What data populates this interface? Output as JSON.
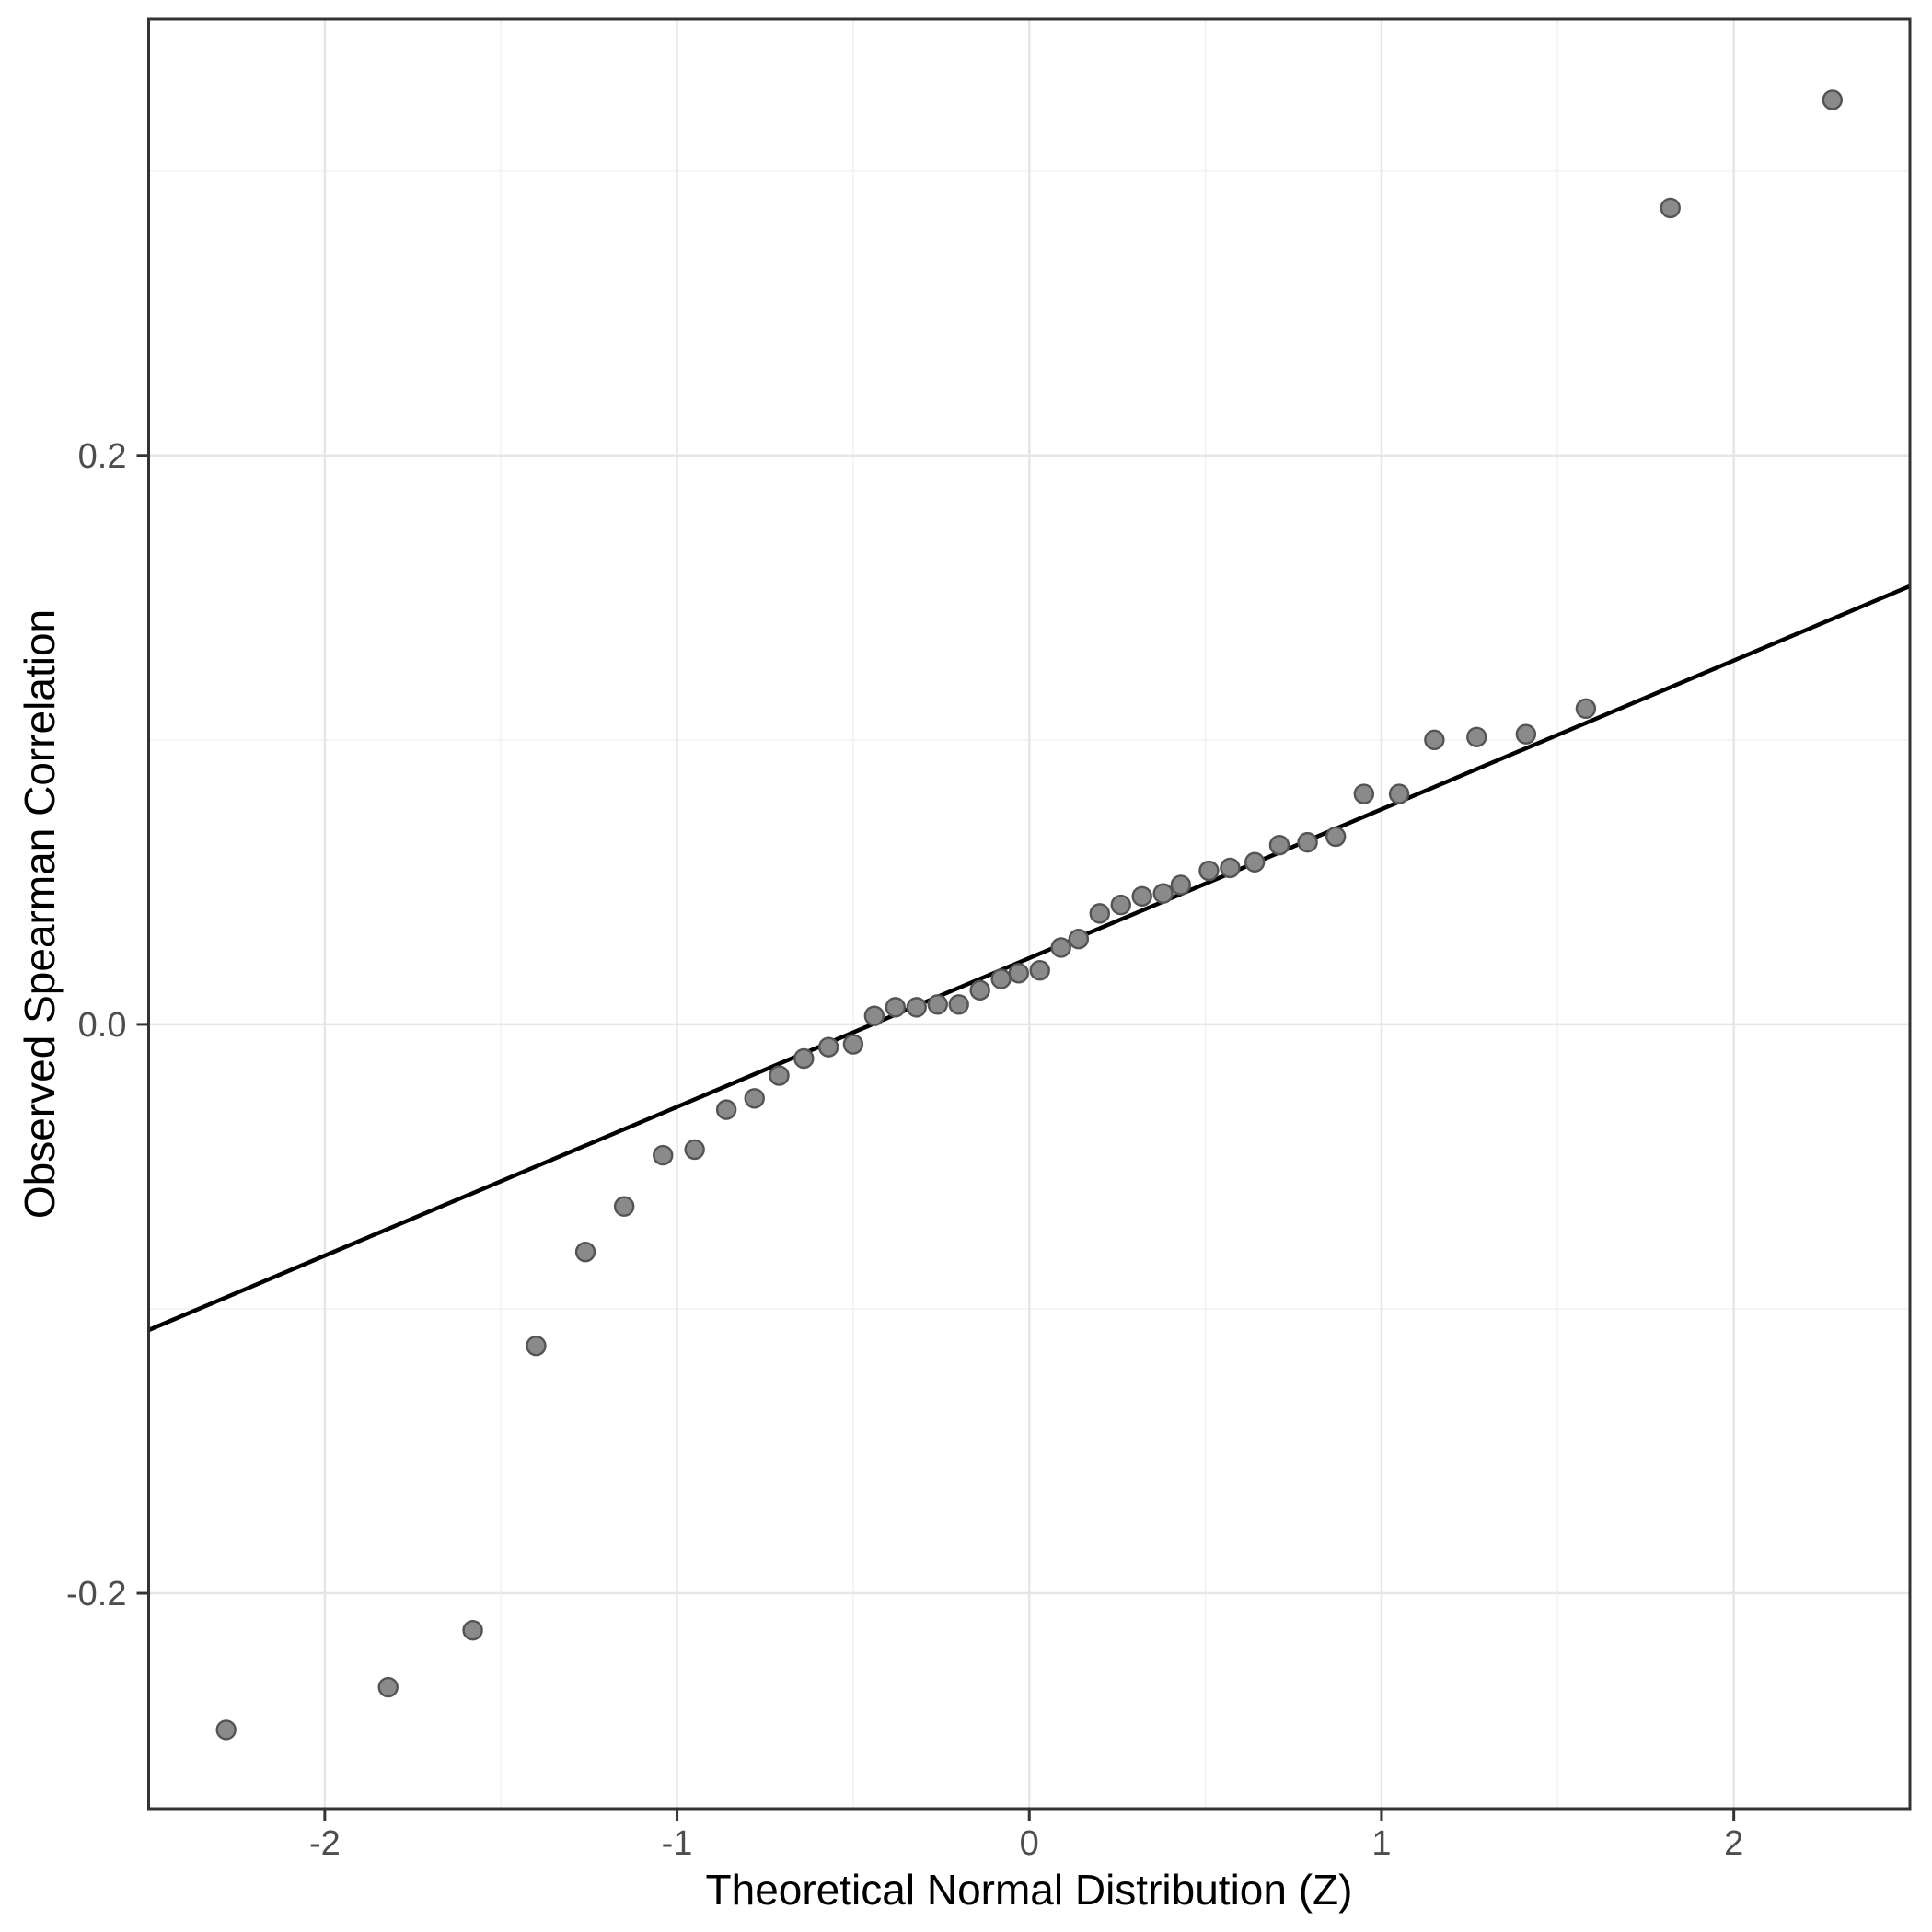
{
  "figure": {
    "background": "#ffffff"
  },
  "chart_data": {
    "type": "scatter",
    "title": "",
    "xlabel": "Theoretical Normal Distribution (Z)",
    "ylabel": "Observed Spearman Correlation",
    "xlim": [
      -2.5,
      2.5
    ],
    "ylim": [
      -0.2757,
      0.3533
    ],
    "grid": true,
    "legend": "none",
    "x_ticks": [
      {
        "value": -2,
        "label": "-2"
      },
      {
        "value": -1,
        "label": "-1"
      },
      {
        "value": 0,
        "label": "0"
      },
      {
        "value": 1,
        "label": "1"
      },
      {
        "value": 2,
        "label": "2"
      }
    ],
    "x_minor": [
      -1.5,
      -0.5,
      0.5,
      1.5
    ],
    "y_ticks": [
      {
        "value": 0.2,
        "label": "0.2"
      },
      {
        "value": 0.0,
        "label": "0.0"
      },
      {
        "value": -0.2,
        "label": "-0.2"
      }
    ],
    "y_minor": [
      0.3,
      0.1,
      -0.1
    ],
    "series": [
      {
        "name": "observed-vs-theoretical-quantiles",
        "points": [
          [
            -2.28,
            -0.248
          ],
          [
            -1.82,
            -0.233
          ],
          [
            -1.58,
            -0.213
          ],
          [
            -1.4,
            -0.113
          ],
          [
            -1.26,
            -0.08
          ],
          [
            -1.15,
            -0.064
          ],
          [
            -1.04,
            -0.046
          ],
          [
            -0.95,
            -0.044
          ],
          [
            -0.86,
            -0.03
          ],
          [
            -0.78,
            -0.026
          ],
          [
            -0.71,
            -0.018
          ],
          [
            -0.64,
            -0.012
          ],
          [
            -0.57,
            -0.008
          ],
          [
            -0.5,
            -0.007
          ],
          [
            -0.44,
            0.003
          ],
          [
            -0.38,
            0.006
          ],
          [
            -0.32,
            0.006
          ],
          [
            -0.26,
            0.007
          ],
          [
            -0.2,
            0.007
          ],
          [
            -0.14,
            0.012
          ],
          [
            -0.08,
            0.016
          ],
          [
            -0.03,
            0.018
          ],
          [
            0.03,
            0.019
          ],
          [
            0.09,
            0.027
          ],
          [
            0.14,
            0.03
          ],
          [
            0.2,
            0.039
          ],
          [
            0.26,
            0.042
          ],
          [
            0.32,
            0.045
          ],
          [
            0.38,
            0.046
          ],
          [
            0.43,
            0.049
          ],
          [
            0.51,
            0.054
          ],
          [
            0.57,
            0.055
          ],
          [
            0.64,
            0.057
          ],
          [
            0.71,
            0.063
          ],
          [
            0.79,
            0.064
          ],
          [
            0.87,
            0.066
          ],
          [
            0.95,
            0.081
          ],
          [
            1.05,
            0.081
          ],
          [
            1.15,
            0.1
          ],
          [
            1.27,
            0.101
          ],
          [
            1.41,
            0.102
          ],
          [
            1.58,
            0.111
          ],
          [
            1.82,
            0.287
          ],
          [
            2.28,
            0.325
          ]
        ]
      }
    ],
    "reference_line": {
      "intercept": 0.0233,
      "slope": 0.0523,
      "x_start": -2.5,
      "x_end": 2.5
    },
    "style": {
      "panel_background": "#ffffff",
      "panel_border_color": "#333333",
      "grid_major_color": "#e6e6e6",
      "grid_minor_color": "#f2f2f2",
      "point_fill": "#8a8a8a",
      "point_stroke": "#545454",
      "reference_line_color": "#000000",
      "tick_color": "#333333",
      "tick_label_color": "#4d4d4d",
      "axis_title_color": "#000000"
    }
  }
}
